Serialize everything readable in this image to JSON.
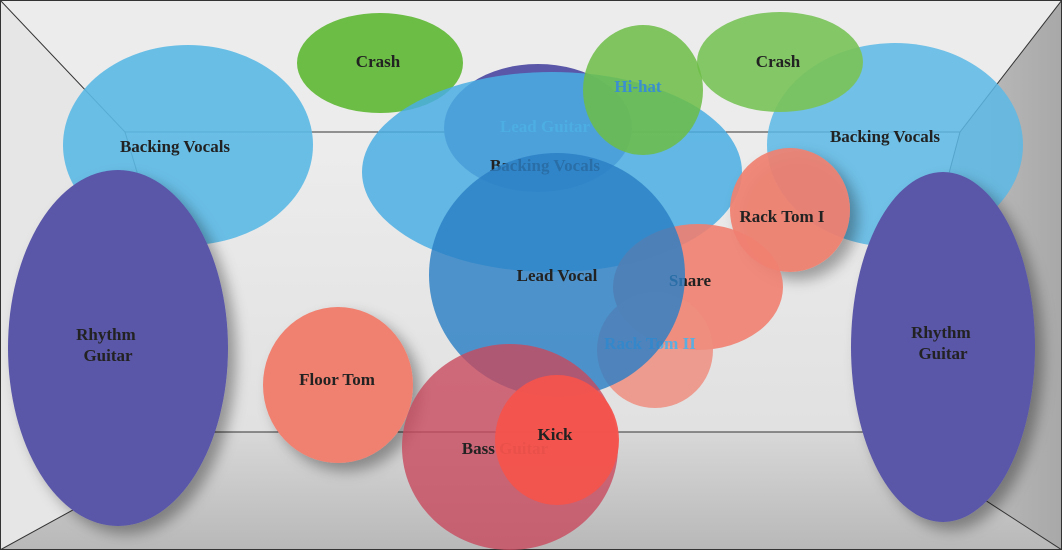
{
  "nodes": [
    {
      "label": "Backing Vocals"
    },
    {
      "label": "Backing Vocals"
    },
    {
      "label": "Crash"
    },
    {
      "label": "Crash"
    },
    {
      "label": "Lead Guitar"
    },
    {
      "label": "Backing Vocals"
    },
    {
      "label": "Hi-hat"
    },
    {
      "label": "Rack Tom I"
    },
    {
      "label": "Snare"
    },
    {
      "label": "Rack Tom II"
    },
    {
      "label": "Lead Vocal"
    },
    {
      "label": "Floor Tom"
    },
    {
      "label": "Bass Guitar"
    },
    {
      "label": "Kick"
    },
    {
      "label": "Rhythm Guitar"
    },
    {
      "label": "Rhythm Guitar"
    }
  ]
}
